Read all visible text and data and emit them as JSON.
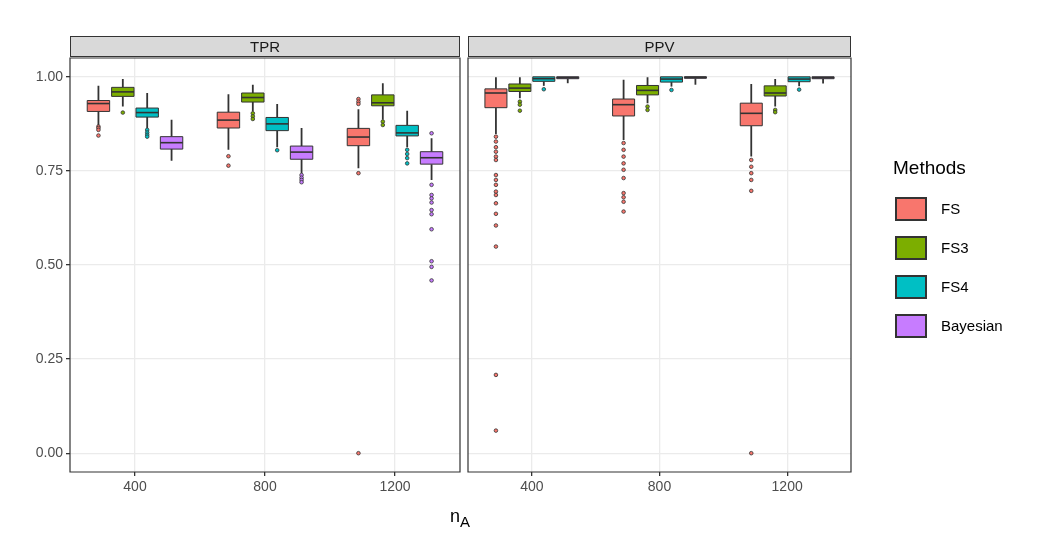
{
  "chart_data": [
    {
      "type": "box",
      "title": "TPR",
      "xlabel": "n$_{A}$",
      "categories": [
        "400",
        "800",
        "1200"
      ],
      "ylim": [
        -0.05,
        1.05
      ],
      "yticks": [
        {
          "value": 0,
          "label": "0.00"
        },
        {
          "value": 0.25,
          "label": "0.25"
        },
        {
          "value": 0.5,
          "label": "0.50"
        },
        {
          "value": 0.75,
          "label": "0.75"
        },
        {
          "value": 1,
          "label": "1.00"
        }
      ],
      "grid": true,
      "legend": "right",
      "legend_title": "Methods",
      "series": [
        {
          "name": "FS",
          "color": "#f8766d",
          "boxes": [
            {
              "low": 0.872,
              "q1": 0.908,
              "median": 0.929,
              "q3": 0.937,
              "high": 0.976,
              "outliers": [
                0.868,
                0.864,
                0.859,
                0.844
              ]
            },
            {
              "low": 0.806,
              "q1": 0.864,
              "median": 0.885,
              "q3": 0.906,
              "high": 0.954,
              "outliers": [
                0.789,
                0.764
              ]
            },
            {
              "low": 0.757,
              "q1": 0.817,
              "median": 0.84,
              "q3": 0.863,
              "high": 0.914,
              "outliers": [
                0.941,
                0.934,
                0.928,
                0.744,
                0
              ]
            }
          ]
        },
        {
          "name": "FS3",
          "color": "#7cae00",
          "boxes": [
            {
              "low": 0.921,
              "q1": 0.948,
              "median": 0.96,
              "q3": 0.972,
              "high": 0.994,
              "outliers": [
                0.905
              ]
            },
            {
              "low": 0.908,
              "q1": 0.933,
              "median": 0.945,
              "q3": 0.957,
              "high": 0.979,
              "outliers": [
                0.903,
                0.895,
                0.888
              ]
            },
            {
              "low": 0.886,
              "q1": 0.923,
              "median": 0.931,
              "q3": 0.952,
              "high": 0.983,
              "outliers": [
                0.881,
                0.872
              ]
            }
          ]
        },
        {
          "name": "FS4",
          "color": "#00bfc4",
          "boxes": [
            {
              "low": 0.864,
              "q1": 0.893,
              "median": 0.905,
              "q3": 0.917,
              "high": 0.957,
              "outliers": [
                0.859,
                0.852,
                0.846,
                0.841
              ]
            },
            {
              "low": 0.813,
              "q1": 0.857,
              "median": 0.875,
              "q3": 0.892,
              "high": 0.928,
              "outliers": [
                0.805
              ]
            },
            {
              "low": 0.813,
              "q1": 0.843,
              "median": 0.851,
              "q3": 0.871,
              "high": 0.91,
              "outliers": [
                0.806,
                0.795,
                0.784,
                0.77
              ]
            }
          ]
        },
        {
          "name": "Bayesian",
          "color": "#c77cff",
          "boxes": [
            {
              "low": 0.777,
              "q1": 0.808,
              "median": 0.825,
              "q3": 0.841,
              "high": 0.886
            },
            {
              "low": 0.744,
              "q1": 0.781,
              "median": 0.8,
              "q3": 0.816,
              "high": 0.864,
              "outliers": [
                0.739,
                0.732,
                0.726,
                0.72
              ]
            },
            {
              "low": 0.726,
              "q1": 0.768,
              "median": 0.785,
              "q3": 0.801,
              "high": 0.837,
              "outliers": [
                0.85,
                0.713,
                0.686,
                0.677,
                0.666,
                0.646,
                0.635,
                0.595,
                0.51,
                0.495,
                0.459
              ]
            }
          ]
        }
      ]
    },
    {
      "type": "box",
      "title": "PPV",
      "categories": [
        "400",
        "800",
        "1200"
      ],
      "ylim": [
        -0.05,
        1.05
      ],
      "yticks": [
        0,
        0.25,
        0.5,
        0.75,
        1
      ],
      "grid": true,
      "tick_labels": "x",
      "series": [
        {
          "color": "#f8766d",
          "boxes": [
            {
              "low": 0.848,
              "q1": 0.918,
              "median": 0.957,
              "q3": 0.968,
              "high": 0.999,
              "outliers": [
                0.841,
                0.828,
                0.813,
                0.801,
                0.788,
                0.779,
                0.739,
                0.726,
                0.713,
                0.695,
                0.686,
                0.664,
                0.636,
                0.605,
                0.549,
                0.208,
                0.06
              ]
            },
            {
              "low": 0.832,
              "q1": 0.896,
              "median": 0.926,
              "q3": 0.941,
              "high": 0.992,
              "outliers": [
                0.824,
                0.806,
                0.788,
                0.77,
                0.753,
                0.731,
                0.691,
                0.68,
                0.668,
                0.642
              ]
            },
            {
              "low": 0.788,
              "q1": 0.87,
              "median": 0.903,
              "q3": 0.93,
              "high": 0.981,
              "outliers": [
                0.779,
                0.761,
                0.744,
                0.726,
                0.697,
                0
              ]
            }
          ]
        },
        {
          "color": "#7cae00",
          "boxes": [
            {
              "low": 0.943,
              "q1": 0.961,
              "median": 0.97,
              "q3": 0.981,
              "high": 0.999,
              "outliers": [
                0.934,
                0.926,
                0.91
              ]
            },
            {
              "low": 0.93,
              "q1": 0.952,
              "median": 0.964,
              "q3": 0.977,
              "high": 0.999,
              "outliers": [
                0.921,
                0.912
              ]
            },
            {
              "low": 0.921,
              "q1": 0.949,
              "median": 0.957,
              "q3": 0.976,
              "high": 0.994,
              "outliers": [
                0.912,
                0.906
              ]
            }
          ]
        },
        {
          "color": "#00bfc4",
          "boxes": [
            {
              "low": 0.976,
              "q1": 0.988,
              "median": 0.995,
              "q3": 1,
              "high": 1,
              "outliers": [
                0.967
              ]
            },
            {
              "low": 0.974,
              "q1": 0.986,
              "median": 0.994,
              "q3": 1,
              "high": 1,
              "outliers": [
                0.965
              ]
            },
            {
              "low": 0.975,
              "q1": 0.987,
              "median": 0.994,
              "q3": 1,
              "high": 1,
              "outliers": [
                0.966
              ]
            }
          ]
        },
        {
          "color": "#c77cff",
          "boxes": [
            {
              "low": 0.983,
              "q1": 0.995,
              "median": 0.998,
              "q3": 1,
              "high": 1
            },
            {
              "low": 0.979,
              "q1": 0.996,
              "median": 0.999,
              "q3": 1,
              "high": 1
            },
            {
              "low": 0.982,
              "q1": 0.995,
              "median": 0.998,
              "q3": 1,
              "high": 1
            }
          ]
        }
      ]
    }
  ]
}
